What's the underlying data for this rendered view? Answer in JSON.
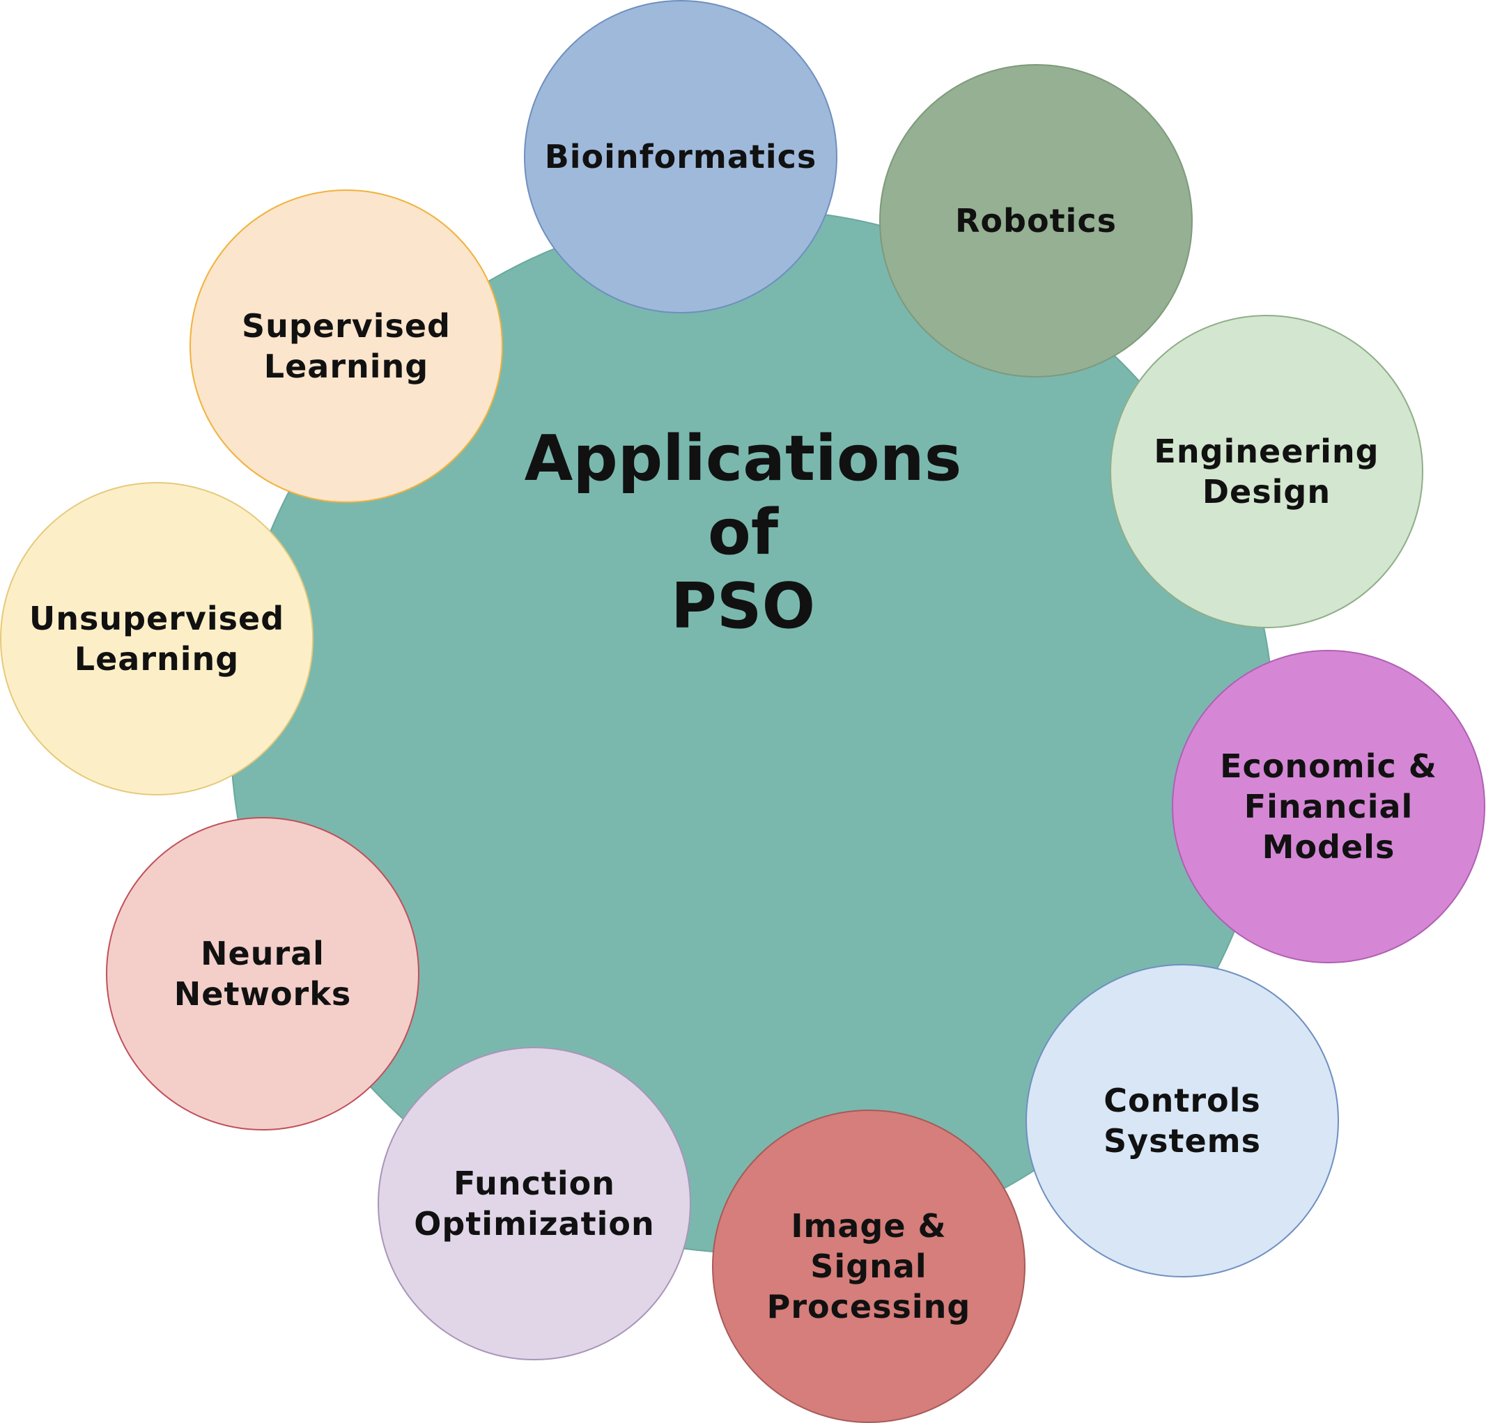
{
  "center": {
    "lines": [
      "Applications",
      "of",
      "PSO"
    ],
    "color": "#7ab8ae"
  },
  "nodes": [
    {
      "id": "bioinformatics",
      "lines": [
        "Bioinformatics"
      ],
      "fill": "#9fb9da",
      "stroke": "#6f8fbf"
    },
    {
      "id": "robotics",
      "lines": [
        "Robotics"
      ],
      "fill": "#95b092",
      "stroke": "#7e9a7b"
    },
    {
      "id": "engineering-design",
      "lines": [
        "Engineering",
        "Design"
      ],
      "fill": "#d3e6cf",
      "stroke": "#8fae88"
    },
    {
      "id": "economic-financial-models",
      "lines": [
        "Economic &",
        "Financial",
        "Models"
      ],
      "fill": "#d587d6",
      "stroke": "#b05fb3"
    },
    {
      "id": "controls-systems",
      "lines": [
        "Controls",
        "Systems"
      ],
      "fill": "#d8e6f6",
      "stroke": "#6f8fbf"
    },
    {
      "id": "image-signal-processing",
      "lines": [
        "Image &",
        "Signal",
        "Processing"
      ],
      "fill": "#d57e7b",
      "stroke": "#a85a58"
    },
    {
      "id": "function-optimization",
      "lines": [
        "Function",
        "Optimization"
      ],
      "fill": "#e0d6e8",
      "stroke": "#a895b8"
    },
    {
      "id": "neural-networks",
      "lines": [
        "Neural",
        "Networks"
      ],
      "fill": "#f4cfca",
      "stroke": "#c0505a"
    },
    {
      "id": "unsupervised-learning",
      "lines": [
        "Unsupervised",
        "Learning"
      ],
      "fill": "#fcefc8",
      "stroke": "#e6c97a"
    },
    {
      "id": "supervised-learning",
      "lines": [
        "Supervised",
        "Learning"
      ],
      "fill": "#fbe5cc",
      "stroke": "#f0b23c"
    }
  ]
}
